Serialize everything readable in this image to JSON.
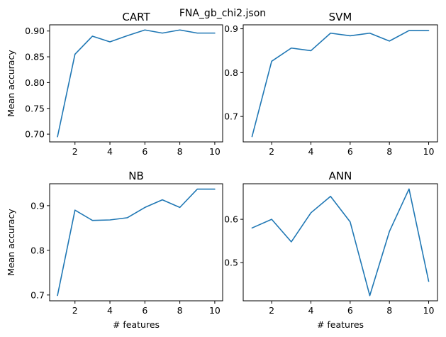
{
  "suptitle": "FNA_gb_chi2.json",
  "style": {
    "line_color": "#1f77b4"
  },
  "chart_data": [
    {
      "type": "line",
      "title": "CART",
      "xlabel": "",
      "ylabel": "Mean accuracy",
      "x": [
        1,
        2,
        3,
        4,
        5,
        6,
        7,
        8,
        9,
        10
      ],
      "series": [
        {
          "values": [
            0.695,
            0.855,
            0.89,
            0.879,
            0.891,
            0.902,
            0.896,
            0.902,
            0.896,
            0.896
          ]
        }
      ],
      "xlim": [
        0.55,
        10.45
      ],
      "ylim": [
        0.685,
        0.912
      ],
      "xticks": [
        2,
        4,
        6,
        8,
        10
      ],
      "yticks": [
        0.7,
        0.75,
        0.8,
        0.85,
        0.9
      ],
      "yticklabels": [
        "0.70",
        "0.75",
        "0.80",
        "0.85",
        "0.90"
      ],
      "grid": false
    },
    {
      "type": "line",
      "title": "SVM",
      "xlabel": "",
      "ylabel": "",
      "x": [
        1,
        2,
        3,
        4,
        5,
        6,
        7,
        8,
        9,
        10
      ],
      "series": [
        {
          "values": [
            0.654,
            0.826,
            0.856,
            0.85,
            0.89,
            0.884,
            0.89,
            0.872,
            0.896,
            0.896
          ]
        }
      ],
      "xlim": [
        0.55,
        10.45
      ],
      "ylim": [
        0.642,
        0.909
      ],
      "xticks": [
        2,
        4,
        6,
        8,
        10
      ],
      "yticks": [
        0.7,
        0.8,
        0.9
      ],
      "yticklabels": [
        "0.7",
        "0.8",
        "0.9"
      ],
      "grid": false
    },
    {
      "type": "line",
      "title": "NB",
      "xlabel": "# features",
      "ylabel": "Mean accuracy",
      "x": [
        1,
        2,
        3,
        4,
        5,
        6,
        7,
        8,
        9,
        10
      ],
      "series": [
        {
          "values": [
            0.699,
            0.89,
            0.867,
            0.868,
            0.873,
            0.896,
            0.913,
            0.896,
            0.937,
            0.937
          ]
        }
      ],
      "xlim": [
        0.55,
        10.45
      ],
      "ylim": [
        0.687,
        0.949
      ],
      "xticks": [
        2,
        4,
        6,
        8,
        10
      ],
      "yticks": [
        0.7,
        0.8,
        0.9
      ],
      "yticklabels": [
        "0.7",
        "0.8",
        "0.9"
      ],
      "grid": false
    },
    {
      "type": "line",
      "title": "ANN",
      "xlabel": "# features",
      "ylabel": "",
      "x": [
        1,
        2,
        3,
        4,
        5,
        6,
        7,
        8,
        9,
        10
      ],
      "series": [
        {
          "values": [
            0.58,
            0.6,
            0.548,
            0.615,
            0.653,
            0.594,
            0.424,
            0.572,
            0.67,
            0.457
          ]
        }
      ],
      "xlim": [
        0.55,
        10.45
      ],
      "ylim": [
        0.412,
        0.682
      ],
      "xticks": [
        2,
        4,
        6,
        8,
        10
      ],
      "yticks": [
        0.5,
        0.6
      ],
      "yticklabels": [
        "0.5",
        "0.6"
      ],
      "grid": false
    }
  ]
}
